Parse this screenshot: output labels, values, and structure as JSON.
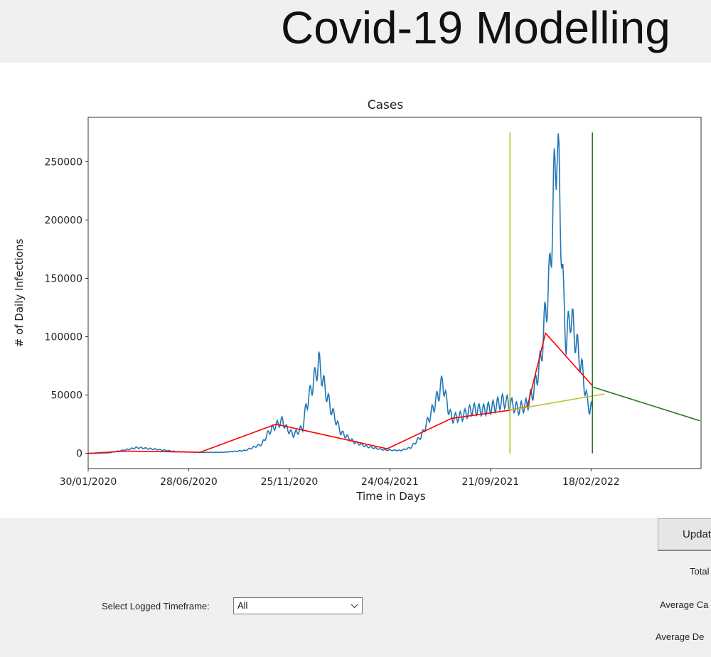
{
  "app": {
    "title": "Covid-19 Modelling"
  },
  "chart_data": {
    "type": "line",
    "title": "Cases",
    "xlabel": "Time in Days",
    "ylabel": "# of Daily Infections",
    "x_tick_labels": [
      "30/01/2020",
      "28/06/2020",
      "25/11/2020",
      "24/04/2021",
      "21/09/2021",
      "18/02/2022"
    ],
    "x_tick_dates": [
      "2020-01-30",
      "2020-06-28",
      "2020-11-25",
      "2021-04-24",
      "2021-09-21",
      "2022-02-18"
    ],
    "y_ticks": [
      0,
      50000,
      100000,
      150000,
      200000,
      250000
    ],
    "xlim": [
      "2020-01-30",
      "2022-08-01"
    ],
    "ylim": [
      -13000,
      288000
    ],
    "grid": false,
    "series": [
      {
        "color": "#1f77b4",
        "style": "daily-wave",
        "x": [
          "2020-01-30",
          "2020-03-01",
          "2020-03-25",
          "2020-04-12",
          "2020-05-10",
          "2020-06-10",
          "2020-07-15",
          "2020-08-20",
          "2020-09-20",
          "2020-10-15",
          "2020-10-25",
          "2020-11-05",
          "2020-11-15",
          "2020-11-20",
          "2020-12-01",
          "2020-12-15",
          "2020-12-20",
          "2021-01-02",
          "2021-01-08",
          "2021-01-15",
          "2021-01-25",
          "2021-02-10",
          "2021-03-01",
          "2021-03-20",
          "2021-04-15",
          "2021-05-10",
          "2021-05-25",
          "2021-06-10",
          "2021-06-25",
          "2021-07-05",
          "2021-07-12",
          "2021-07-17",
          "2021-07-25",
          "2021-08-10",
          "2021-08-25",
          "2021-09-10",
          "2021-09-25",
          "2021-10-10",
          "2021-10-20",
          "2021-11-01",
          "2021-11-15",
          "2021-11-25",
          "2021-12-05",
          "2021-12-12",
          "2021-12-18",
          "2021-12-25",
          "2021-12-29",
          "2022-01-03",
          "2022-01-08",
          "2022-01-12",
          "2022-01-18",
          "2022-01-25",
          "2022-02-05",
          "2022-02-12",
          "2022-02-16",
          "2022-02-20"
        ],
        "y": [
          0,
          500,
          3000,
          5000,
          3500,
          1500,
          800,
          1000,
          2500,
          8000,
          18000,
          24000,
          28000,
          22000,
          16000,
          22000,
          40000,
          65000,
          78000,
          60000,
          40000,
          18000,
          10000,
          6000,
          3000,
          2500,
          5000,
          15000,
          35000,
          50000,
          62000,
          45000,
          30000,
          32000,
          38000,
          37000,
          40000,
          45000,
          43000,
          38000,
          42000,
          55000,
          80000,
          120000,
          150000,
          230000,
          272000,
          210000,
          130000,
          95000,
          120000,
          100000,
          70000,
          45000,
          38000,
          40000
        ]
      },
      {
        "color": "#ff0000",
        "x": [
          "2020-01-30",
          "2020-03-25",
          "2020-07-15",
          "2020-11-05",
          "2021-04-20",
          "2021-07-25",
          "2021-10-20",
          "2021-11-15",
          "2021-12-12",
          "2022-02-20"
        ],
        "y": [
          0,
          2000,
          1000,
          25000,
          4000,
          30000,
          37000,
          40000,
          103000,
          58000
        ]
      },
      {
        "color": "#bfbf2a",
        "x": [
          "2021-10-20",
          "2022-03-10"
        ],
        "y": [
          37000,
          51000
        ]
      },
      {
        "color": "#2a7a1f",
        "x": [
          "2022-02-20",
          "2022-07-30"
        ],
        "y": [
          57000,
          28000
        ]
      }
    ],
    "vertical_lines": [
      {
        "x": "2021-10-20",
        "color": "#bfbf2a",
        "y": [
          0,
          275000
        ]
      },
      {
        "x": "2022-02-20",
        "color": "#2a7a1f",
        "y": [
          0,
          275000
        ]
      }
    ]
  },
  "controls": {
    "update_label": "Update",
    "total_label": "Total",
    "avg_cases_label": "Average Ca",
    "avg_deaths_label": "Average De",
    "timeframe_label": "Select Logged Timeframe:",
    "timeframe_value": "All"
  }
}
